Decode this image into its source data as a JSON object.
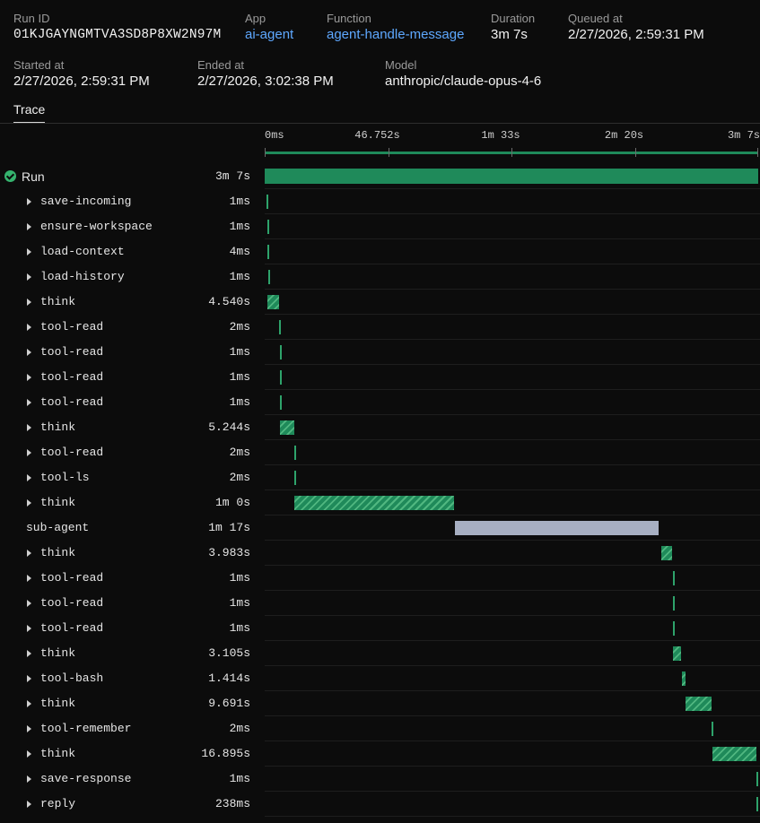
{
  "header": {
    "run_id": {
      "label": "Run ID",
      "value": "01KJGAYNGMTVA3SD8P8XW2N97M"
    },
    "app": {
      "label": "App",
      "value": "ai-agent"
    },
    "function": {
      "label": "Function",
      "value": "agent-handle-message"
    },
    "duration": {
      "label": "Duration",
      "value": "3m 7s"
    },
    "queued_at": {
      "label": "Queued at",
      "value": "2/27/2026, 2:59:31 PM"
    },
    "started_at": {
      "label": "Started at",
      "value": "2/27/2026, 2:59:31 PM"
    },
    "ended_at": {
      "label": "Ended at",
      "value": "2/27/2026, 3:02:38 PM"
    },
    "model": {
      "label": "Model",
      "value": "anthropic/claude-opus-4-6"
    }
  },
  "tabs": {
    "trace": "Trace"
  },
  "timeline": {
    "total_seconds": 187,
    "ticks": [
      {
        "label": "0ms",
        "seconds": 0
      },
      {
        "label": "46.752s",
        "seconds": 46.752
      },
      {
        "label": "1m 33s",
        "seconds": 93.5
      },
      {
        "label": "2m 20s",
        "seconds": 140.25
      },
      {
        "label": "3m 7s",
        "seconds": 187
      }
    ]
  },
  "colors": {
    "bar_green": "#1f8a5a",
    "sub_agent": "#a7afc2",
    "link": "#5ea8ff",
    "status_ok": "#35b36e"
  },
  "trace": [
    {
      "name": "Run",
      "duration": "3m 7s",
      "start_s": 0,
      "dur_s": 187,
      "style": "solid",
      "status": "success",
      "expandable": false
    },
    {
      "name": "save-incoming",
      "duration": "1ms",
      "start_s": 0.6,
      "dur_s": 0.001,
      "style": "thin",
      "expandable": true
    },
    {
      "name": "ensure-workspace",
      "duration": "1ms",
      "start_s": 0.9,
      "dur_s": 0.001,
      "style": "thin",
      "expandable": true
    },
    {
      "name": "load-context",
      "duration": "4ms",
      "start_s": 1.1,
      "dur_s": 0.004,
      "style": "thin",
      "expandable": true
    },
    {
      "name": "load-history",
      "duration": "1ms",
      "start_s": 1.3,
      "dur_s": 0.001,
      "style": "thin",
      "expandable": true
    },
    {
      "name": "think",
      "duration": "4.540s",
      "start_s": 1.0,
      "dur_s": 4.54,
      "style": "hatch",
      "expandable": true
    },
    {
      "name": "tool-read",
      "duration": "2ms",
      "start_s": 5.6,
      "dur_s": 0.002,
      "style": "thin",
      "expandable": true
    },
    {
      "name": "tool-read",
      "duration": "1ms",
      "start_s": 5.7,
      "dur_s": 0.001,
      "style": "thin",
      "expandable": true
    },
    {
      "name": "tool-read",
      "duration": "1ms",
      "start_s": 5.8,
      "dur_s": 0.001,
      "style": "thin",
      "expandable": true
    },
    {
      "name": "tool-read",
      "duration": "1ms",
      "start_s": 5.8,
      "dur_s": 0.001,
      "style": "thin",
      "expandable": true
    },
    {
      "name": "think",
      "duration": "5.244s",
      "start_s": 5.9,
      "dur_s": 5.244,
      "style": "hatch",
      "expandable": true
    },
    {
      "name": "tool-read",
      "duration": "2ms",
      "start_s": 11.2,
      "dur_s": 0.002,
      "style": "thin",
      "expandable": true
    },
    {
      "name": "tool-ls",
      "duration": "2ms",
      "start_s": 11.3,
      "dur_s": 0.002,
      "style": "thin",
      "expandable": true
    },
    {
      "name": "think",
      "duration": "1m 0s",
      "start_s": 11.3,
      "dur_s": 60.5,
      "style": "hatch",
      "expandable": true
    },
    {
      "name": "sub-agent",
      "duration": "1m 17s",
      "start_s": 72.0,
      "dur_s": 77.4,
      "style": "sub",
      "expandable": false
    },
    {
      "name": "think",
      "duration": "3.983s",
      "start_s": 150.3,
      "dur_s": 3.983,
      "style": "hatch",
      "expandable": true
    },
    {
      "name": "tool-read",
      "duration": "1ms",
      "start_s": 154.6,
      "dur_s": 0.001,
      "style": "thin",
      "expandable": true
    },
    {
      "name": "tool-read",
      "duration": "1ms",
      "start_s": 154.7,
      "dur_s": 0.001,
      "style": "thin",
      "expandable": true
    },
    {
      "name": "tool-read",
      "duration": "1ms",
      "start_s": 154.7,
      "dur_s": 0.001,
      "style": "thin",
      "expandable": true
    },
    {
      "name": "think",
      "duration": "3.105s",
      "start_s": 154.8,
      "dur_s": 3.105,
      "style": "hatch",
      "expandable": true
    },
    {
      "name": "tool-bash",
      "duration": "1.414s",
      "start_s": 158.0,
      "dur_s": 1.414,
      "style": "hatch",
      "expandable": true
    },
    {
      "name": "think",
      "duration": "9.691s",
      "start_s": 159.5,
      "dur_s": 9.691,
      "style": "hatch",
      "expandable": true
    },
    {
      "name": "tool-remember",
      "duration": "2ms",
      "start_s": 169.3,
      "dur_s": 0.002,
      "style": "thin",
      "expandable": true
    },
    {
      "name": "think",
      "duration": "16.895s",
      "start_s": 169.5,
      "dur_s": 16.895,
      "style": "hatch",
      "expandable": true
    },
    {
      "name": "save-response",
      "duration": "1ms",
      "start_s": 186.5,
      "dur_s": 0.001,
      "style": "thin",
      "expandable": true
    },
    {
      "name": "reply",
      "duration": "238ms",
      "start_s": 186.6,
      "dur_s": 0.238,
      "style": "thin",
      "expandable": true
    }
  ]
}
